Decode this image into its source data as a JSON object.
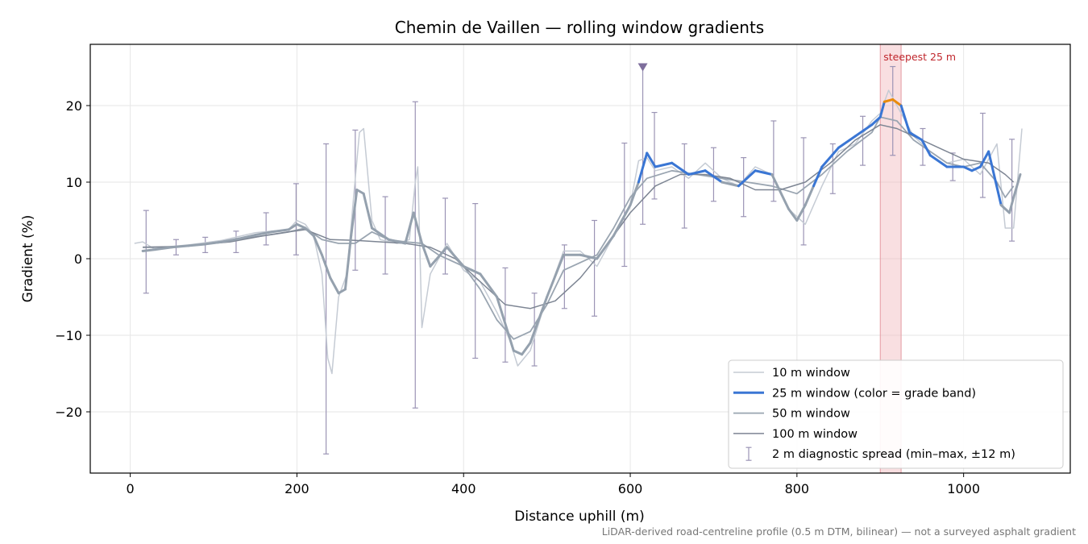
{
  "chart_data": {
    "type": "line",
    "title": "Chemin de Vaillen — rolling window gradients",
    "xlabel": "Distance uphill (m)",
    "ylabel": "Gradient (%)",
    "xlim": [
      -48,
      1128
    ],
    "ylim": [
      -28,
      28
    ],
    "x_ticks": [
      0,
      200,
      400,
      600,
      800,
      1000
    ],
    "y_ticks": [
      -20,
      -10,
      0,
      10,
      20
    ],
    "x_tick_labels": [
      "0",
      "200",
      "400",
      "600",
      "800",
      "1000"
    ],
    "y_tick_labels": [
      "−20",
      "−10",
      "0",
      "10",
      "20"
    ],
    "grid": true,
    "legend_position": "lower-right",
    "footnote": "LiDAR-derived road-centreline profile (0.5 m DTM, bilinear) — not a surveyed asphalt gradient",
    "annotation": {
      "text": "steepest 25 m",
      "x_start": 900,
      "x_end": 925,
      "color": "#c0272d"
    },
    "marker": {
      "x": 615,
      "y": 25,
      "color": "#7e6e9c"
    },
    "series": [
      {
        "name": "10 m window",
        "color": "#c5cbd4",
        "x": [
          5,
          15,
          30,
          50,
          70,
          90,
          110,
          130,
          150,
          170,
          190,
          200,
          210,
          220,
          230,
          237,
          242,
          250,
          260,
          268,
          275,
          280,
          290,
          300,
          320,
          335,
          342,
          345,
          350,
          360,
          380,
          400,
          420,
          440,
          455,
          465,
          480,
          500,
          520,
          540,
          560,
          580,
          600,
          610,
          620,
          630,
          650,
          670,
          690,
          710,
          730,
          750,
          770,
          790,
          810,
          830,
          850,
          870,
          890,
          900,
          910,
          920,
          930,
          940,
          960,
          980,
          1000,
          1020,
          1030,
          1040,
          1050,
          1060,
          1070
        ],
        "y": [
          2,
          2.2,
          1.2,
          1.6,
          1.8,
          2.1,
          2.4,
          2.9,
          3.4,
          3.6,
          3.8,
          5.0,
          4.5,
          3.0,
          -2,
          -13.0,
          -15,
          -5,
          -2,
          8,
          16.5,
          17,
          5,
          2.5,
          2,
          2.5,
          10,
          12,
          -9,
          -2,
          2,
          -1.5,
          -3,
          -7,
          -10.5,
          -14,
          -12,
          -5,
          1,
          1,
          -1,
          3,
          7,
          12.8,
          13.2,
          11.5,
          12,
          10.5,
          12.5,
          10.5,
          9.5,
          12,
          11,
          6.5,
          4.5,
          9.5,
          14,
          15,
          18,
          19,
          22,
          20,
          18,
          16,
          14,
          12.5,
          13,
          11,
          13,
          15,
          4,
          4,
          17
        ]
      },
      {
        "name": "25 m window (color = grade band)",
        "color": "#3a76d4",
        "x": [
          15,
          30,
          50,
          70,
          90,
          110,
          130,
          150,
          170,
          190,
          200,
          210,
          220,
          230,
          240,
          250,
          258,
          265,
          272,
          280,
          290,
          310,
          330,
          340,
          350,
          360,
          380,
          400,
          410,
          420,
          440,
          460,
          470,
          480,
          500,
          520,
          540,
          560,
          580,
          600,
          610,
          620,
          630,
          650,
          670,
          690,
          710,
          730,
          750,
          770,
          790,
          800,
          810,
          820,
          830,
          850,
          870,
          890,
          900,
          905,
          915,
          925,
          935,
          950,
          960,
          980,
          1000,
          1010,
          1020,
          1030,
          1045,
          1055,
          1060,
          1068
        ],
        "y": [
          1.0,
          1.2,
          1.5,
          1.7,
          1.9,
          2.2,
          2.6,
          3.1,
          3.5,
          3.8,
          4.5,
          4.0,
          3.0,
          0.5,
          -2.5,
          -4.5,
          -4.0,
          3.0,
          9.0,
          8.5,
          4.0,
          2.5,
          2.0,
          6.0,
          2.0,
          -1.0,
          1.5,
          -1.0,
          -1.5,
          -2.0,
          -5.0,
          -12.0,
          -12.5,
          -11.0,
          -5.0,
          0.5,
          0.5,
          0.0,
          3.0,
          7.0,
          10.0,
          13.8,
          12.0,
          12.5,
          11.0,
          11.5,
          10.0,
          9.5,
          11.5,
          11.0,
          6.5,
          5.0,
          7.0,
          9.5,
          12.0,
          14.5,
          16.0,
          17.5,
          18.5,
          20.5,
          20.8,
          20.0,
          16.5,
          15.5,
          13.5,
          12.0,
          12.0,
          11.5,
          12.0,
          14.0,
          7.0,
          6.0,
          8.0,
          11.0
        ]
      },
      {
        "name": "50 m window",
        "color": "#9aa5b1",
        "x": [
          15,
          40,
          80,
          120,
          160,
          190,
          210,
          230,
          250,
          270,
          290,
          310,
          330,
          350,
          370,
          400,
          420,
          440,
          460,
          480,
          500,
          520,
          540,
          560,
          580,
          600,
          620,
          650,
          680,
          710,
          740,
          770,
          800,
          830,
          860,
          890,
          900,
          920,
          940,
          960,
          980,
          1000,
          1020,
          1040,
          1050,
          1060
        ],
        "y": [
          1.5,
          1.5,
          1.8,
          2.4,
          3.0,
          3.5,
          4.0,
          2.5,
          2.0,
          2.0,
          3.5,
          2.5,
          2.2,
          2.0,
          0.5,
          -1.0,
          -4.0,
          -8.0,
          -10.5,
          -9.5,
          -6.0,
          -1.5,
          -0.5,
          0.5,
          4.0,
          8.0,
          10.5,
          11.5,
          11.0,
          10.5,
          10.0,
          9.5,
          8.5,
          11.0,
          14.0,
          16.5,
          18.5,
          18.0,
          15.5,
          14.0,
          12.5,
          12.0,
          12.5,
          10.0,
          8.0,
          9.5
        ]
      },
      {
        "name": "100 m window",
        "color": "#7d8593",
        "x": [
          15,
          60,
          120,
          160,
          190,
          210,
          240,
          270,
          300,
          330,
          360,
          390,
          420,
          450,
          480,
          510,
          540,
          570,
          600,
          630,
          660,
          690,
          720,
          750,
          780,
          810,
          840,
          870,
          900,
          920,
          940,
          970,
          1000,
          1030,
          1050,
          1060
        ],
        "y": [
          1.5,
          1.6,
          2.2,
          3.0,
          3.5,
          3.8,
          2.5,
          2.4,
          2.2,
          2.0,
          1.5,
          0.0,
          -3.0,
          -6.0,
          -6.5,
          -5.5,
          -2.5,
          1.5,
          6.0,
          9.5,
          11.0,
          11.0,
          10.5,
          9.0,
          9.0,
          10.0,
          12.5,
          15.5,
          17.5,
          17.0,
          16.0,
          14.5,
          13.0,
          12.5,
          11.0,
          10.0
        ]
      },
      {
        "name": "2 m diagnostic spread (min–max, ±12 m)",
        "color": "#9b94b5",
        "x": [
          19,
          55,
          90,
          127,
          163,
          199,
          235,
          270,
          306,
          342,
          378,
          414,
          450,
          485,
          521,
          557,
          593,
          615,
          629,
          665,
          700,
          736,
          772,
          808,
          843,
          879,
          915,
          951,
          987,
          1023,
          1058
        ],
        "low": [
          -4.5,
          0.5,
          0.8,
          0.8,
          1.8,
          0.5,
          -25.5,
          -1.5,
          -2.0,
          -19.5,
          -2.0,
          -13.0,
          -13.5,
          -14.0,
          -6.5,
          -7.5,
          -1.0,
          4.5,
          7.8,
          4.0,
          7.5,
          5.5,
          7.5,
          1.8,
          8.5,
          12.2,
          13.5,
          12.2,
          10.2,
          8.0,
          2.3
        ],
        "high": [
          6.3,
          2.5,
          2.8,
          3.6,
          6.0,
          9.8,
          15.0,
          16.8,
          8.1,
          20.5,
          7.9,
          7.2,
          -1.2,
          -4.5,
          1.8,
          5.0,
          15.1,
          25.2,
          19.1,
          15.0,
          14.5,
          13.2,
          18.0,
          15.8,
          15.0,
          18.6,
          25.1,
          17.0,
          13.8,
          19.0,
          15.6
        ]
      }
    ]
  }
}
